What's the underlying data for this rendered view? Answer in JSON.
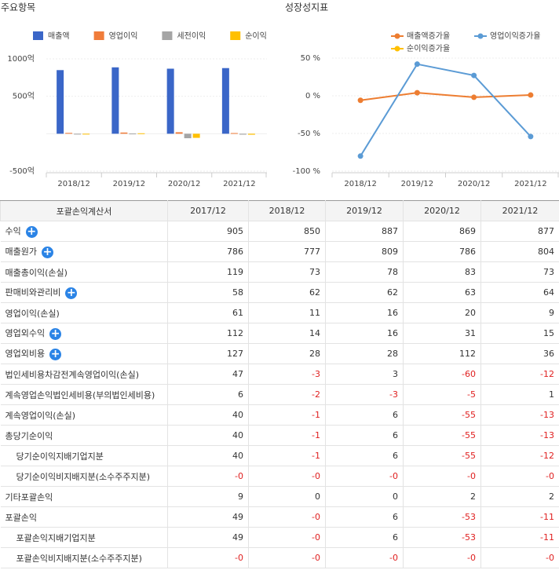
{
  "chart_data": [
    {
      "type": "bar",
      "title": "주요항목",
      "categories": [
        "2018/12",
        "2019/12",
        "2020/12",
        "2021/12"
      ],
      "series": [
        {
          "name": "매출액",
          "color": "#3a66c8",
          "values": [
            850,
            887,
            869,
            877
          ]
        },
        {
          "name": "영업이익",
          "color": "#f07c3a",
          "values": [
            11,
            16,
            20,
            9
          ]
        },
        {
          "name": "세전이익",
          "color": "#a5a5a5",
          "values": [
            -3,
            3,
            -60,
            -12
          ]
        },
        {
          "name": "순이익",
          "color": "#ffc000",
          "values": [
            -1,
            6,
            -55,
            -13
          ]
        }
      ],
      "ylim": [
        -500,
        1000
      ],
      "yticks": [
        {
          "value": 1000,
          "label": "1000억"
        },
        {
          "value": 500,
          "label": "500억"
        },
        {
          "value": -500,
          "label": "-500억"
        }
      ],
      "grid": true
    },
    {
      "type": "line",
      "title": "성장성지표",
      "categories": [
        "2018/12",
        "2019/12",
        "2020/12",
        "2021/12"
      ],
      "series": [
        {
          "name": "매출액증가율",
          "color": "#ed7d31",
          "values": [
            -6,
            4,
            -2,
            1
          ]
        },
        {
          "name": "영업이익증가율",
          "color": "#5b9bd5",
          "values": [
            -80,
            42,
            27,
            -54
          ]
        },
        {
          "name": "순이익증가율",
          "color": "#ffc000",
          "values": [
            null,
            null,
            null,
            null
          ]
        }
      ],
      "ylim": [
        -100,
        50
      ],
      "yticks": [
        {
          "value": 50,
          "label": "50 %"
        },
        {
          "value": 0,
          "label": "0 %"
        },
        {
          "value": -50,
          "label": "-50 %"
        },
        {
          "value": -100,
          "label": "-100 %"
        }
      ],
      "grid": true
    }
  ],
  "table": {
    "header": [
      "포괄손익계산서",
      "2017/12",
      "2018/12",
      "2019/12",
      "2020/12",
      "2021/12"
    ],
    "rows": [
      {
        "label": "수익",
        "expandable": true,
        "values": [
          "905",
          "850",
          "887",
          "869",
          "877"
        ]
      },
      {
        "label": "매출원가",
        "expandable": true,
        "values": [
          "786",
          "777",
          "809",
          "786",
          "804"
        ]
      },
      {
        "label": "매출총이익(손실)",
        "values": [
          "119",
          "73",
          "78",
          "83",
          "73"
        ]
      },
      {
        "label": "판매비와관리비",
        "expandable": true,
        "values": [
          "58",
          "62",
          "62",
          "63",
          "64"
        ]
      },
      {
        "label": "영업이익(손실)",
        "values": [
          "61",
          "11",
          "16",
          "20",
          "9"
        ]
      },
      {
        "label": "영업외수익",
        "expandable": true,
        "values": [
          "112",
          "14",
          "16",
          "31",
          "15"
        ]
      },
      {
        "label": "영업외비용",
        "expandable": true,
        "values": [
          "127",
          "28",
          "28",
          "112",
          "36"
        ]
      },
      {
        "label": "법인세비용차감전계속영업이익(손실)",
        "values": [
          "47",
          "-3",
          "3",
          "-60",
          "-12"
        ]
      },
      {
        "label": "계속영업손익법인세비용(부의법인세비용)",
        "values": [
          "6",
          "-2",
          "-3",
          "-5",
          "1"
        ]
      },
      {
        "label": "계속영업이익(손실)",
        "values": [
          "40",
          "-1",
          "6",
          "-55",
          "-13"
        ]
      },
      {
        "label": "총당기순이익",
        "values": [
          "40",
          "-1",
          "6",
          "-55",
          "-13"
        ]
      },
      {
        "label": "당기순이익지배기업지분",
        "indent": true,
        "values": [
          "40",
          "-1",
          "6",
          "-55",
          "-12"
        ]
      },
      {
        "label": "당기순이익비지배지분(소수주주지분)",
        "indent": true,
        "values": [
          "-0",
          "-0",
          "-0",
          "-0",
          "-0"
        ]
      },
      {
        "label": "기타포괄손익",
        "values": [
          "9",
          "0",
          "0",
          "2",
          "2"
        ]
      },
      {
        "label": "포괄손익",
        "values": [
          "49",
          "-0",
          "6",
          "-53",
          "-11"
        ]
      },
      {
        "label": "포괄손익지배기업지분",
        "indent": true,
        "values": [
          "49",
          "-0",
          "6",
          "-53",
          "-11"
        ]
      },
      {
        "label": "포괄손익비지배지분(소수주주지분)",
        "indent": true,
        "values": [
          "-0",
          "-0",
          "-0",
          "-0",
          "-0"
        ]
      }
    ]
  }
}
